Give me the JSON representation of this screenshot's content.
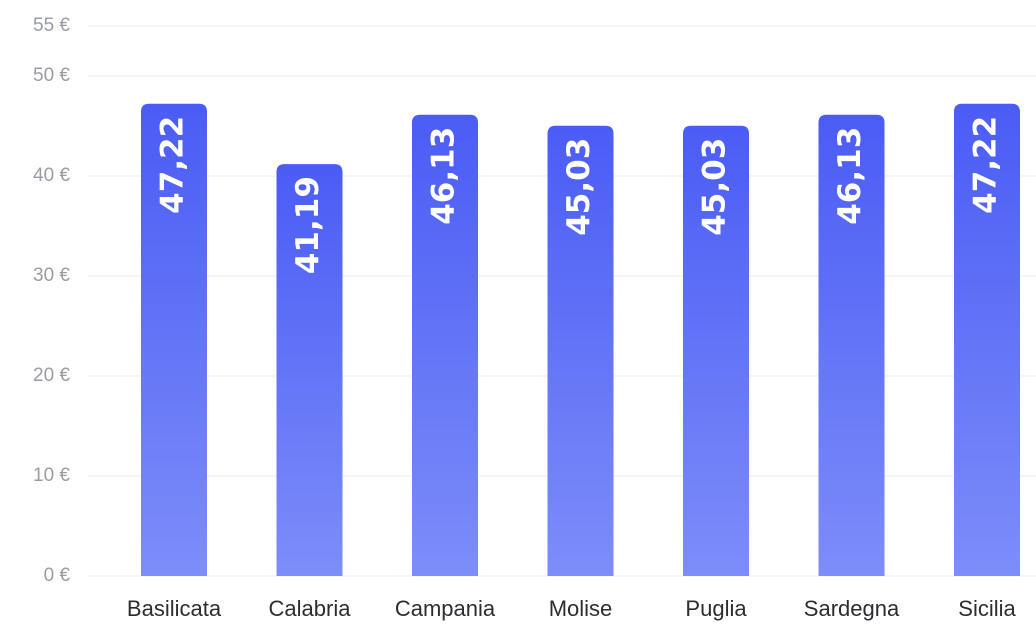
{
  "chart_data": {
    "type": "bar",
    "categories": [
      "Basilicata",
      "Calabria",
      "Campania",
      "Molise",
      "Puglia",
      "Sardegna",
      "Sicilia"
    ],
    "values": [
      47.22,
      41.19,
      46.13,
      45.03,
      45.03,
      46.13,
      47.22
    ],
    "value_labels": [
      "47,22",
      "41,19",
      "46,13",
      "45,03",
      "45,03",
      "46,13",
      "47,22"
    ],
    "color": "#5468f6",
    "ylim": [
      0,
      55
    ],
    "yticks": [
      {
        "value": 0,
        "label": "0 €"
      },
      {
        "value": 10,
        "label": "10 €"
      },
      {
        "value": 20,
        "label": "20 €"
      },
      {
        "value": 30,
        "label": "30 €"
      },
      {
        "value": 40,
        "label": "40 €"
      },
      {
        "value": 50,
        "label": "50 €"
      },
      {
        "value": 55,
        "label": "55 €"
      }
    ],
    "grid": true
  }
}
